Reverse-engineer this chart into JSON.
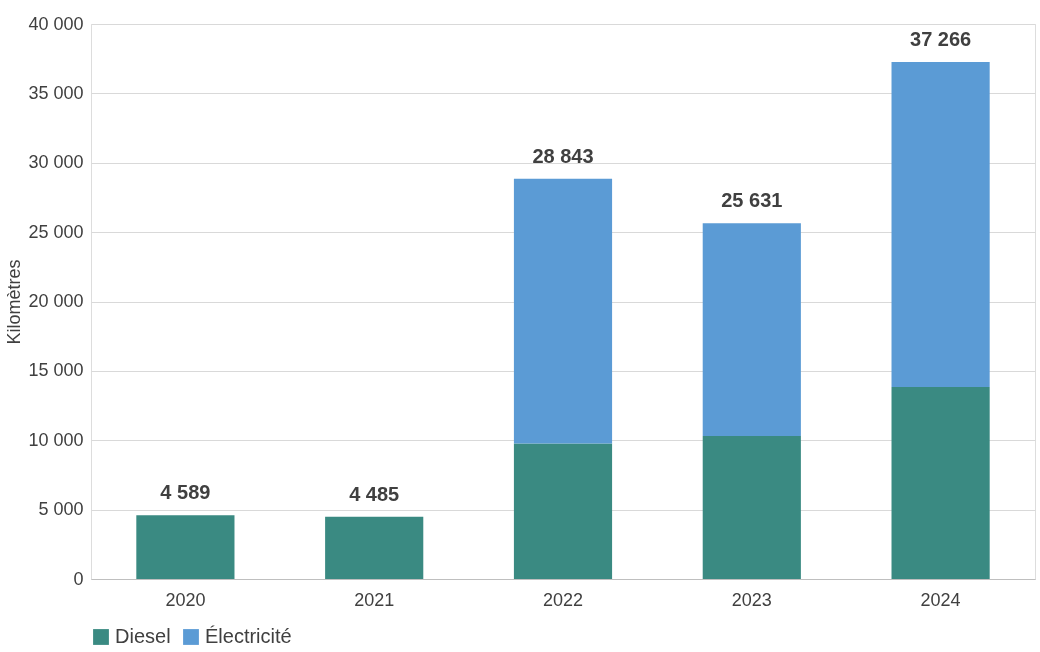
{
  "chart_data": {
    "type": "bar",
    "stacked": true,
    "ylabel": "Kilomètres",
    "categories": [
      "2020",
      "2021",
      "2022",
      "2023",
      "2024"
    ],
    "series": [
      {
        "name": "Diesel",
        "color": "#3a8a82",
        "values": [
          4589,
          4485,
          9770,
          10310,
          13830
        ]
      },
      {
        "name": "Électricité",
        "color": "#5b9bd5",
        "values": [
          null,
          null,
          19073,
          15321,
          23436
        ]
      }
    ],
    "totals": [
      "4 589",
      "4 485",
      "28 843",
      "25 631",
      "37 266"
    ],
    "ylim": [
      0,
      40000
    ],
    "yticks": [
      {
        "value": 0,
        "label": "0"
      },
      {
        "value": 5000,
        "label": "5 000"
      },
      {
        "value": 10000,
        "label": "10 000"
      },
      {
        "value": 15000,
        "label": "15 000"
      },
      {
        "value": 20000,
        "label": "20 000"
      },
      {
        "value": 25000,
        "label": "25 000"
      },
      {
        "value": 30000,
        "label": "30 000"
      },
      {
        "value": 35000,
        "label": "35 000"
      },
      {
        "value": 40000,
        "label": "40 000"
      }
    ],
    "grid": "y",
    "legend": "bottom"
  }
}
